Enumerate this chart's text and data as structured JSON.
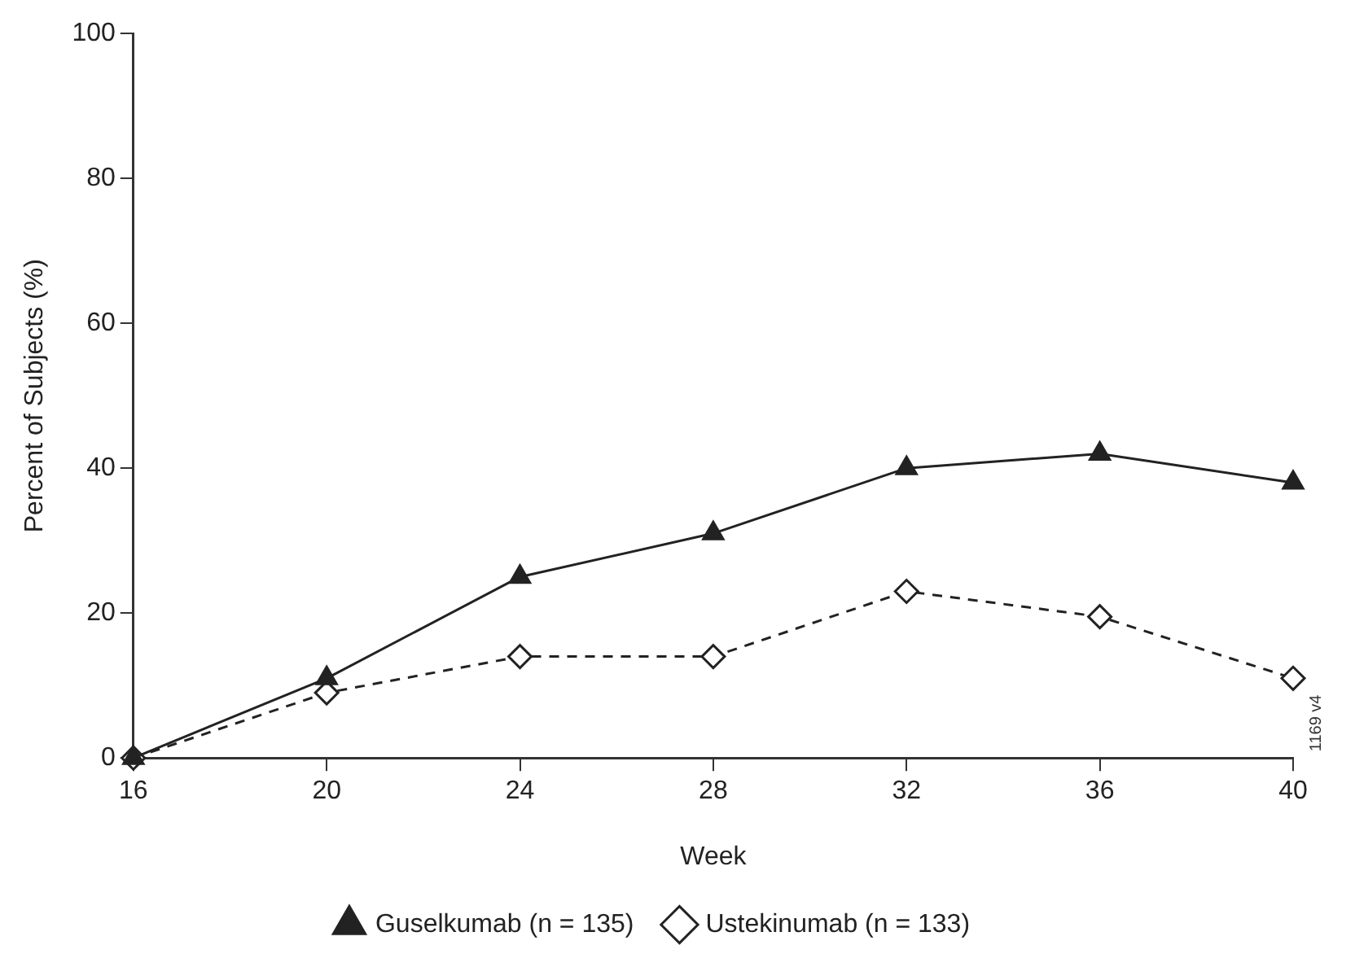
{
  "chart_data": {
    "type": "line",
    "xlabel": "Week",
    "ylabel": "Percent of Subjects (%)",
    "x": [
      16,
      20,
      24,
      28,
      32,
      36,
      40
    ],
    "series": [
      {
        "name": "Guselkumab (n = 135)",
        "color": "#222222",
        "values": [
          0,
          11,
          25,
          31,
          40,
          42,
          38
        ],
        "marker": "triangle",
        "line_style": "solid"
      },
      {
        "name": "Ustekinumab (n = 133)",
        "color": "#222222",
        "values": [
          0,
          9,
          14,
          14,
          23,
          19.5,
          11
        ],
        "marker": "diamond",
        "line_style": "dashed"
      }
    ],
    "xlim": [
      16,
      40
    ],
    "xticks": [
      16,
      20,
      24,
      28,
      32,
      36,
      40
    ],
    "ylim": [
      0,
      100
    ],
    "yticks": [
      0,
      20,
      40,
      60,
      80,
      100
    ],
    "grid": false,
    "legend": "bottom",
    "annotations": [
      "1169 v4"
    ]
  }
}
